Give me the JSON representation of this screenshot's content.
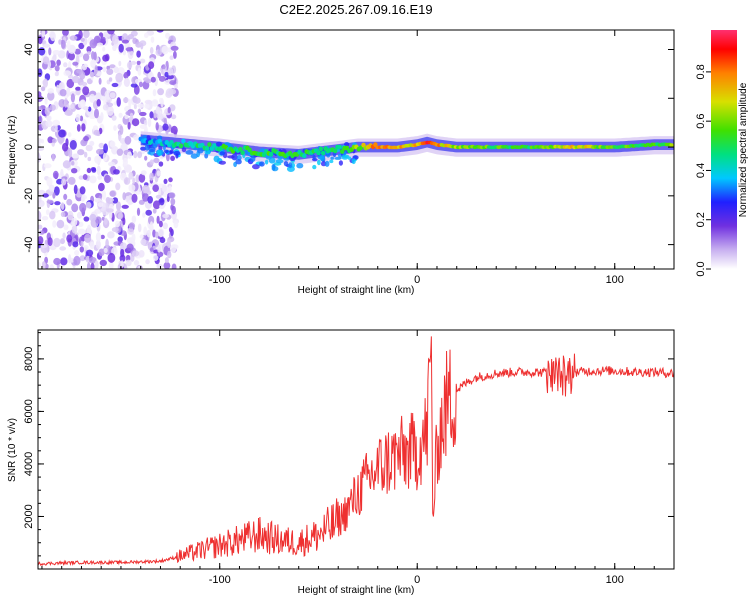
{
  "figure_title": "C2E2.2025.267.09.16.E19",
  "chart_data": [
    {
      "type": "heatmap",
      "xlabel": "Height of straight line (km)",
      "ylabel": "Frequency (Hz)",
      "xlim": [
        -192,
        130
      ],
      "ylim": [
        -50,
        48
      ],
      "xticks": [
        -100,
        0,
        100
      ],
      "xtick_labels": [
        "-100",
        "0",
        "100"
      ],
      "yticks": [
        -40,
        -20,
        0,
        20,
        40
      ],
      "ytick_labels": [
        "-40",
        "-20",
        "0",
        "20",
        "40"
      ],
      "colorbar": {
        "label": "Normalized spectral amplitude",
        "range": [
          0.0,
          0.97
        ],
        "ticks": [
          0.0,
          0.2,
          0.4,
          0.6,
          0.8
        ],
        "tick_labels": [
          "0.0",
          "0.2",
          "0.4",
          "0.6",
          "0.8"
        ],
        "colormap": [
          "#ffffff",
          "#c8b0f0",
          "#7030e0",
          "#2020ff",
          "#00c8ff",
          "#00e080",
          "#40e000",
          "#d8e000",
          "#ff8000",
          "#ff0000",
          "#ff3070"
        ]
      },
      "noise_region": {
        "x_range": [
          -192,
          -122
        ],
        "freq_range": [
          -50,
          48
        ],
        "level": "low (0.0–0.25)"
      },
      "signal_track": {
        "description": "narrow spectral line near 0 Hz",
        "x": [
          -140,
          -120,
          -100,
          -80,
          -60,
          -40,
          -30,
          -20,
          -10,
          0,
          5,
          10,
          20,
          40,
          60,
          70,
          80,
          100,
          120,
          130
        ],
        "center_hz": [
          3,
          1.5,
          0,
          -2,
          -3,
          -1,
          0,
          0,
          0,
          1,
          2,
          1,
          0,
          0,
          0,
          0,
          0,
          0,
          1,
          1
        ],
        "amplitude": [
          0.35,
          0.45,
          0.5,
          0.55,
          0.5,
          0.5,
          0.6,
          0.8,
          0.75,
          0.7,
          0.85,
          0.75,
          0.6,
          0.55,
          0.55,
          0.65,
          0.7,
          0.55,
          0.55,
          0.6
        ]
      }
    },
    {
      "type": "line",
      "xlabel": "Height of straight line (km)",
      "ylabel": "SNR (10 * v/v)",
      "xlim": [
        -192,
        130
      ],
      "ylim": [
        0,
        9100
      ],
      "xticks": [
        -100,
        0,
        100
      ],
      "xtick_labels": [
        "-100",
        "0",
        "100"
      ],
      "yticks": [
        2000,
        4000,
        6000,
        8000
      ],
      "ytick_labels": [
        "2000",
        "4000",
        "6000",
        "8000"
      ],
      "color": "#ee3030",
      "series": [
        {
          "name": "SNR",
          "x": [
            -192,
            -170,
            -150,
            -130,
            -122,
            -110,
            -100,
            -90,
            -80,
            -70,
            -60,
            -50,
            -40,
            -35,
            -30,
            -25,
            -20,
            -15,
            -10,
            -5,
            0,
            5,
            7,
            8,
            10,
            15,
            20,
            25,
            30,
            40,
            50,
            60,
            70,
            75,
            80,
            90,
            100,
            110,
            120,
            130
          ],
          "y": [
            200,
            250,
            250,
            300,
            450,
            700,
            900,
            1100,
            1300,
            1100,
            1000,
            1300,
            1800,
            2300,
            2900,
            3400,
            3800,
            4100,
            4300,
            4400,
            4500,
            5200,
            8500,
            1700,
            4700,
            6300,
            6800,
            7100,
            7300,
            7450,
            7500,
            7500,
            7450,
            7300,
            7500,
            7550,
            7550,
            7500,
            7500,
            7450
          ]
        }
      ]
    }
  ]
}
